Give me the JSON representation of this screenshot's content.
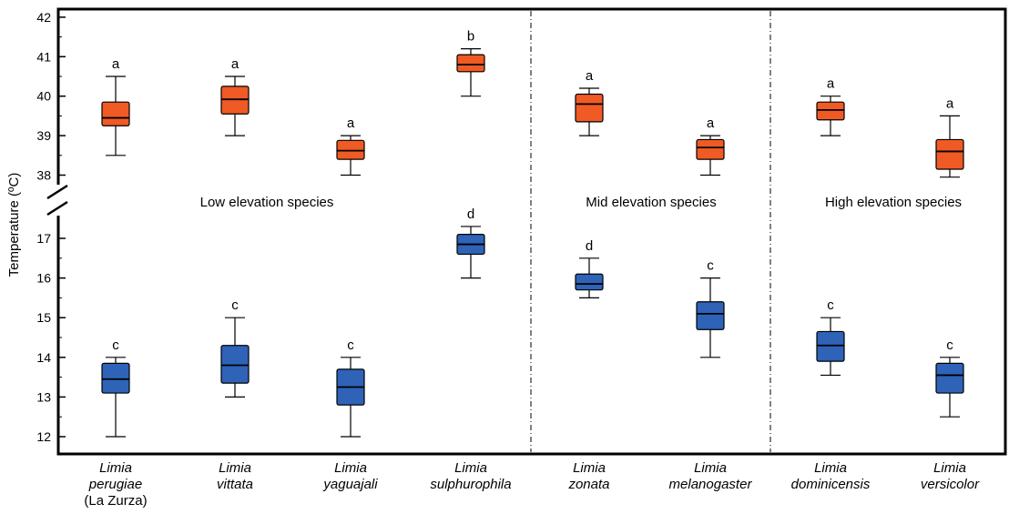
{
  "chart_data": {
    "type": "box",
    "ylabel": "Temperature (ºC)",
    "categories": [
      {
        "lines": [
          "Limia",
          "perugiae"
        ],
        "sub": "(La Zurza)"
      },
      {
        "lines": [
          "Limia",
          "vittata"
        ]
      },
      {
        "lines": [
          "Limia",
          "yaguajali"
        ]
      },
      {
        "lines": [
          "Limia",
          "sulphurophila"
        ]
      },
      {
        "lines": [
          "Limia",
          "zonata"
        ]
      },
      {
        "lines": [
          "Limia",
          "melanogaster"
        ]
      },
      {
        "lines": [
          "Limia",
          "dominicensis"
        ]
      },
      {
        "lines": [
          "Limia",
          "versicolor"
        ]
      }
    ],
    "sections": [
      {
        "label": "Low elevation species"
      },
      {
        "label": "Mid elevation species"
      },
      {
        "label": "High elevation species"
      }
    ],
    "axis_segments": [
      {
        "range": [
          37.8,
          42.2
        ],
        "ticks": [
          38,
          39,
          40,
          41,
          42
        ]
      },
      {
        "range": [
          11.7,
          17.3
        ],
        "ticks": [
          12,
          13,
          14,
          15,
          16,
          17
        ]
      }
    ],
    "series": [
      {
        "color": "#f05a24",
        "boxes": [
          {
            "min": 38.5,
            "q1": 39.25,
            "median": 39.45,
            "q3": 39.85,
            "max": 40.5,
            "sig": "a"
          },
          {
            "min": 39.0,
            "q1": 39.55,
            "median": 39.92,
            "q3": 40.25,
            "max": 40.5,
            "sig": "a"
          },
          {
            "min": 38.0,
            "q1": 38.4,
            "median": 38.62,
            "q3": 38.88,
            "max": 39.0,
            "sig": "a"
          },
          {
            "min": 40.0,
            "q1": 40.62,
            "median": 40.8,
            "q3": 41.05,
            "max": 41.2,
            "sig": "b"
          },
          {
            "min": 39.0,
            "q1": 39.35,
            "median": 39.8,
            "q3": 40.05,
            "max": 40.2,
            "sig": "a"
          },
          {
            "min": 38.0,
            "q1": 38.4,
            "median": 38.7,
            "q3": 38.9,
            "max": 39.0,
            "sig": "a"
          },
          {
            "min": 39.0,
            "q1": 39.4,
            "median": 39.65,
            "q3": 39.85,
            "max": 40.0,
            "sig": "a"
          },
          {
            "min": 37.95,
            "q1": 38.15,
            "median": 38.6,
            "q3": 38.9,
            "max": 39.5,
            "sig": "a"
          }
        ]
      },
      {
        "color": "#2e63b8",
        "boxes": [
          {
            "min": 12.0,
            "q1": 13.1,
            "median": 13.45,
            "q3": 13.85,
            "max": 14.0,
            "sig": "c"
          },
          {
            "min": 13.0,
            "q1": 13.35,
            "median": 13.8,
            "q3": 14.3,
            "max": 15.0,
            "sig": "c"
          },
          {
            "min": 12.0,
            "q1": 12.8,
            "median": 13.25,
            "q3": 13.7,
            "max": 14.0,
            "sig": "c"
          },
          {
            "min": 16.0,
            "q1": 16.6,
            "median": 16.85,
            "q3": 17.1,
            "max": 17.3,
            "sig": "d"
          },
          {
            "min": 15.5,
            "q1": 15.7,
            "median": 15.85,
            "q3": 16.1,
            "max": 16.5,
            "sig": "d"
          },
          {
            "min": 14.0,
            "q1": 14.7,
            "median": 15.1,
            "q3": 15.4,
            "max": 16.0,
            "sig": "c"
          },
          {
            "min": 13.55,
            "q1": 13.9,
            "median": 14.3,
            "q3": 14.65,
            "max": 15.0,
            "sig": "c"
          },
          {
            "min": 12.5,
            "q1": 13.1,
            "median": 13.55,
            "q3": 13.85,
            "max": 14.0,
            "sig": "c"
          }
        ]
      }
    ]
  }
}
